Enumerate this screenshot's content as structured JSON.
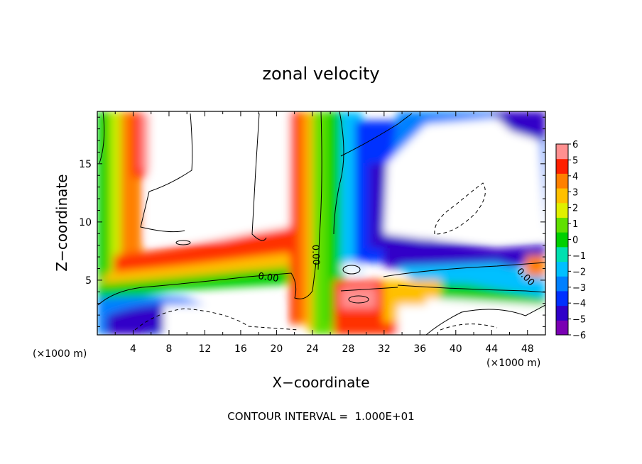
{
  "chart_data": {
    "type": "heatmap",
    "title": "zonal velocity",
    "xlabel": "X−coordinate",
    "ylabel": "Z−coordinate",
    "x_unit_label": "(×1000 m)",
    "y_unit_label": "(×1000 m)",
    "xlim": [
      0,
      50
    ],
    "ylim": [
      0.3,
      19.5
    ],
    "x_ticks": [
      4,
      8,
      12,
      16,
      20,
      24,
      28,
      32,
      36,
      40,
      44,
      48
    ],
    "y_ticks": [
      5,
      10,
      15
    ],
    "colorbar": {
      "ticks": [
        6,
        5,
        4,
        3,
        2,
        1,
        0,
        -1,
        -2,
        -3,
        -4,
        -5,
        -6
      ],
      "range": [
        -6,
        6
      ],
      "palette": [
        "#7a00b3",
        "#3000c8",
        "#0030ff",
        "#0080ff",
        "#00c0ff",
        "#00e0b0",
        "#00d000",
        "#60e000",
        "#e0f000",
        "#ffc000",
        "#ff8000",
        "#ff2000",
        "#ff9090"
      ]
    },
    "contour_labels": [
      "0.00",
      "0.00",
      "0.00"
    ],
    "footer": "CONTOUR INTERVAL =  1.000E+01",
    "grid": false
  }
}
